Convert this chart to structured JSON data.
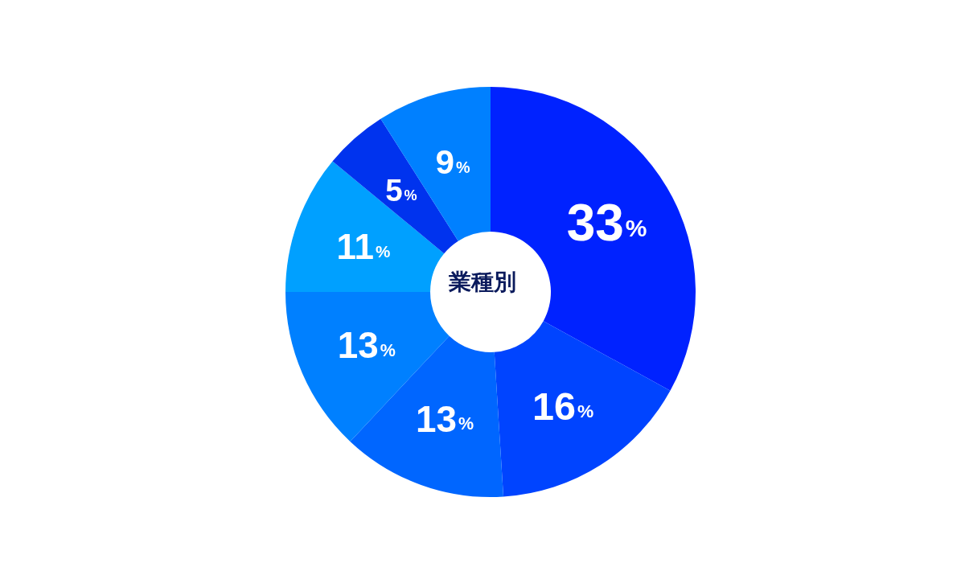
{
  "chart_data": {
    "type": "donut",
    "title": "業種別",
    "categories": [
      null,
      null,
      null,
      null,
      null,
      null,
      null
    ],
    "values": [
      33,
      16,
      13,
      13,
      11,
      5,
      9
    ],
    "colors": [
      "#0022ff",
      "#0044ff",
      "#0066ff",
      "#0080ff",
      "#00a0ff",
      "#0033ee",
      "#0080ff"
    ],
    "value_labels": [
      "33%",
      "16%",
      "13%",
      "13%",
      "11%",
      "5%",
      "9%"
    ]
  }
}
